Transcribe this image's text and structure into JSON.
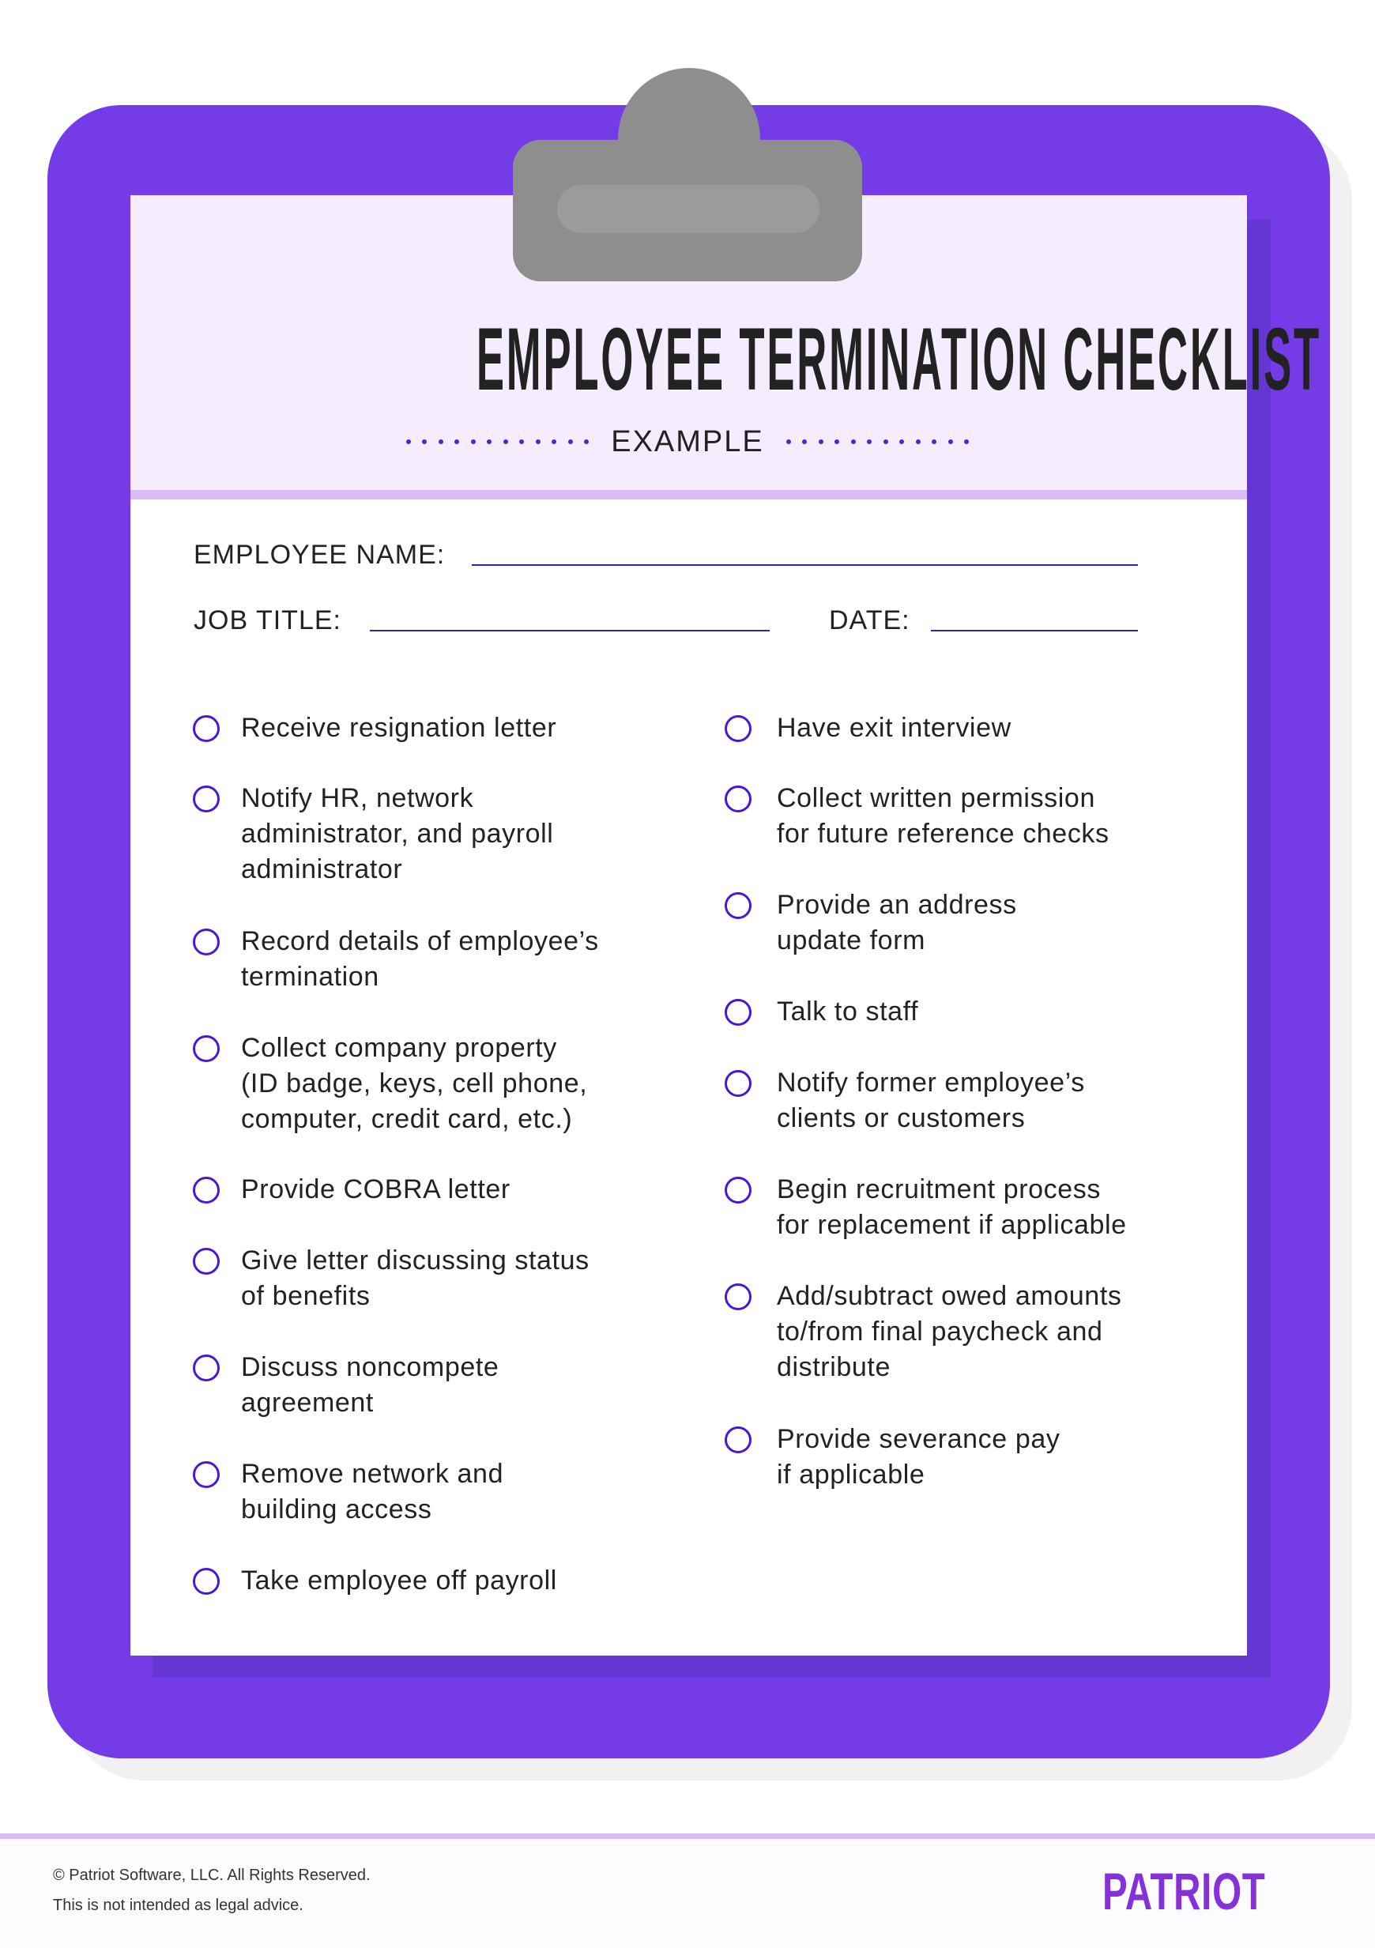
{
  "header": {
    "title": "EMPLOYEE TERMINATION CHECKLIST",
    "subtitle": "EXAMPLE"
  },
  "form": {
    "employee_name_label": "EMPLOYEE NAME:",
    "employee_name_value": "",
    "job_title_label": "JOB TITLE:",
    "job_title_value": "",
    "date_label": "DATE:",
    "date_value": ""
  },
  "checklist": {
    "left": [
      {
        "lines": [
          "Receive resignation letter"
        ],
        "checked": false
      },
      {
        "lines": [
          "Notify HR, network",
          "administrator, and payroll",
          "administrator"
        ],
        "checked": false
      },
      {
        "lines": [
          "Record details of employee’s",
          "termination"
        ],
        "checked": false
      },
      {
        "lines": [
          "Collect company property",
          "(ID badge, keys, cell phone,",
          "computer, credit card, etc.)"
        ],
        "checked": false
      },
      {
        "lines": [
          "Provide COBRA letter"
        ],
        "checked": false
      },
      {
        "lines": [
          "Give letter discussing status",
          "of benefits"
        ],
        "checked": false
      },
      {
        "lines": [
          "Discuss noncompete",
          "agreement"
        ],
        "checked": false
      },
      {
        "lines": [
          "Remove network and",
          "building access"
        ],
        "checked": false
      },
      {
        "lines": [
          "Take employee off payroll"
        ],
        "checked": false
      }
    ],
    "right": [
      {
        "lines": [
          "Have exit interview"
        ],
        "checked": false
      },
      {
        "lines": [
          "Collect written permission",
          "for future reference checks"
        ],
        "checked": false
      },
      {
        "lines": [
          "Provide an address",
          "update form"
        ],
        "checked": false
      },
      {
        "lines": [
          "Talk to staff"
        ],
        "checked": false
      },
      {
        "lines": [
          "Notify former employee’s",
          "clients or customers"
        ],
        "checked": false
      },
      {
        "lines": [
          "Begin recruitment process",
          "for replacement if applicable"
        ],
        "checked": false
      },
      {
        "lines": [
          "Add/subtract owed amounts",
          "to/from final paycheck and",
          "distribute"
        ],
        "checked": false
      },
      {
        "lines": [
          "Provide severance pay",
          "if applicable"
        ],
        "checked": false
      }
    ]
  },
  "footer": {
    "copyright": "© Patriot Software, LLC. All Rights Reserved.",
    "disclaimer": "This is not intended as legal advice.",
    "logo": "PATRIOT"
  },
  "colors": {
    "clipboard": "#743be6",
    "accent": "#4a17d6",
    "header_bg": "#f5edfe",
    "stripe": "#dbbcf8",
    "logo": "#8531da",
    "clip": "#8e8e8e"
  }
}
